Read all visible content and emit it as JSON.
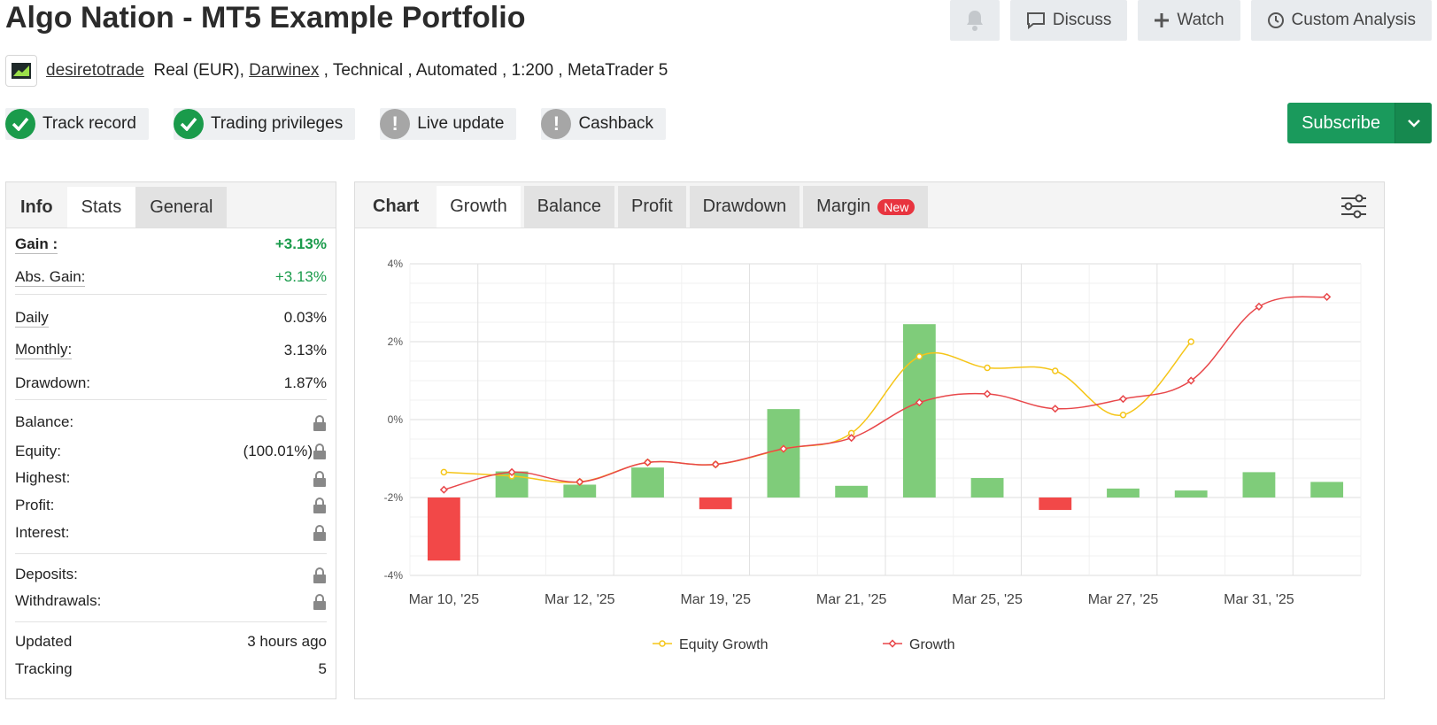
{
  "header": {
    "title": "Algo Nation - MT5 Example Portfolio",
    "actions": {
      "discuss": "Discuss",
      "watch": "Watch",
      "custom_analysis": "Custom Analysis"
    }
  },
  "meta": {
    "user": "desiretotrade",
    "account_type": "Real (EUR),",
    "broker": "Darwinex",
    "rest": " , Technical , Automated , 1:200 , MetaTrader 5"
  },
  "badges": [
    {
      "label": "Track record",
      "status": "ok"
    },
    {
      "label": "Trading privileges",
      "status": "ok"
    },
    {
      "label": "Live update",
      "status": "warn"
    },
    {
      "label": "Cashback",
      "status": "warn"
    }
  ],
  "subscribe": {
    "label": "Subscribe"
  },
  "left_tabs": {
    "info": "Info",
    "stats": "Stats",
    "general": "General"
  },
  "stats": {
    "gain_label": "Gain :",
    "gain_value": "+3.13%",
    "abs_gain_label": "Abs. Gain:",
    "abs_gain_value": "+3.13%",
    "daily_label": "Daily",
    "daily_value": "0.03%",
    "monthly_label": "Monthly:",
    "monthly_value": "3.13%",
    "drawdown_label": "Drawdown:",
    "drawdown_value": "1.87%",
    "balance_label": "Balance:",
    "equity_label": "Equity:",
    "equity_value": "(100.01%)",
    "highest_label": "Highest:",
    "profit_label": "Profit:",
    "interest_label": "Interest:",
    "deposits_label": "Deposits:",
    "withdrawals_label": "Withdrawals:",
    "updated_label": "Updated",
    "updated_value": "3 hours ago",
    "tracking_label": "Tracking",
    "tracking_value": "5"
  },
  "chart_tabs": {
    "chart": "Chart",
    "growth": "Growth",
    "balance": "Balance",
    "profit": "Profit",
    "drawdown": "Drawdown",
    "margin": "Margin",
    "new_badge": "New"
  },
  "colors": {
    "green": "#1a9b4b",
    "equity": "#f5c518",
    "growth": "#e8474a",
    "bar_pos": "#7fcc7a",
    "bar_neg": "#f24848"
  },
  "chart_data": {
    "type": "bar",
    "ylim": [
      -4,
      4
    ],
    "y_ticks": [
      "4%",
      "2%",
      "0%",
      "-2%",
      "-4%"
    ],
    "x_tick_labels": [
      "Mar 10, '25",
      "Mar 12, '25",
      "Mar 19, '25",
      "Mar 21, '25",
      "Mar 25, '25",
      "Mar 27, '25",
      "Mar 31, '25"
    ],
    "bars": [
      -1.62,
      0.67,
      0.33,
      0.77,
      -0.3,
      2.27,
      0.3,
      4.45,
      0.5,
      -0.32,
      0.23,
      0.18,
      0.65,
      0.4
    ],
    "series": [
      {
        "name": "Equity Growth",
        "values": [
          -1.35,
          -1.45,
          -1.6,
          -1.1,
          -1.15,
          -0.75,
          -0.35,
          1.62,
          1.33,
          1.25,
          0.12,
          2.0,
          null,
          null
        ]
      },
      {
        "name": "Growth",
        "values": [
          -1.8,
          -1.35,
          -1.6,
          -1.1,
          -1.15,
          -0.75,
          -0.47,
          0.44,
          0.66,
          0.28,
          0.53,
          1.0,
          2.9,
          3.15
        ]
      }
    ],
    "legend": [
      "Equity Growth",
      "Growth"
    ]
  }
}
